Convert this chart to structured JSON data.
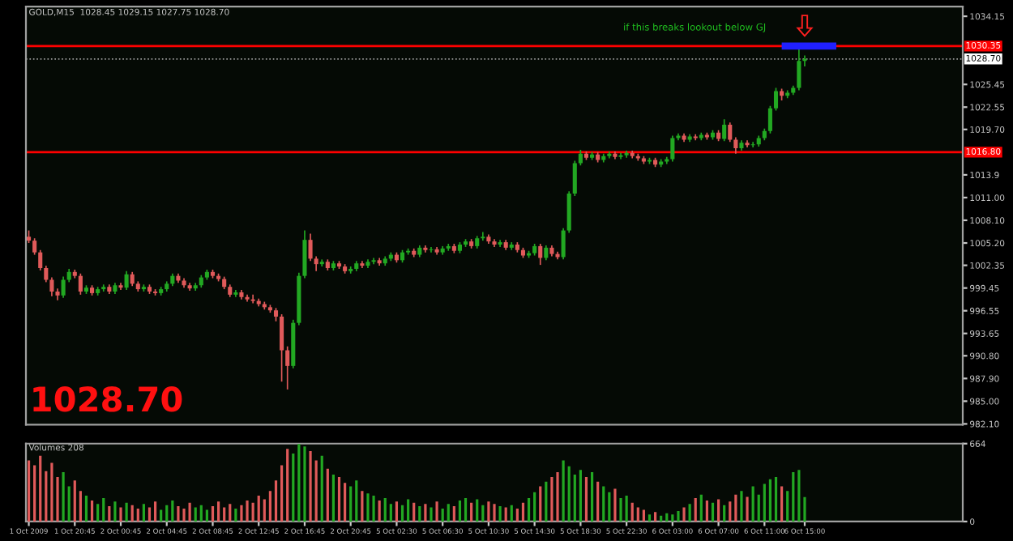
{
  "chart_data": [
    {
      "type": "candlestick",
      "title": "GOLD,M15  1028.45 1029.15 1027.75 1028.70",
      "categories": [
        null,
        null,
        null,
        null,
        null,
        null,
        null,
        null,
        null,
        null,
        null,
        null,
        null,
        null,
        null,
        null,
        null,
        null,
        null,
        null,
        null,
        null,
        null,
        null,
        null,
        null,
        null,
        null,
        null,
        null,
        null,
        null,
        null,
        null,
        null,
        null,
        null,
        null,
        null,
        null,
        null,
        null,
        null,
        null,
        null,
        null,
        null,
        null,
        null,
        null,
        null,
        null,
        null,
        null,
        null,
        null,
        null,
        null,
        null,
        null,
        null,
        null,
        null,
        null,
        null,
        null,
        null,
        null,
        null,
        null,
        null,
        null,
        null,
        null,
        null,
        null,
        null,
        null,
        null,
        null,
        null,
        null,
        null,
        null,
        null,
        null,
        null,
        null,
        null,
        null,
        null,
        null,
        null,
        null,
        null,
        null,
        null,
        null,
        null,
        null,
        null,
        null,
        null,
        null,
        null,
        null,
        null,
        null,
        null,
        null,
        null,
        null,
        null,
        null,
        null,
        null,
        null,
        null,
        null,
        null,
        null,
        null,
        null,
        null,
        null,
        null,
        null,
        null,
        null,
        null,
        null,
        null,
        null,
        null,
        null,
        null,
        null,
        null,
        null,
        null,
        null,
        null,
        null,
        null,
        null,
        null,
        null,
        null,
        null,
        null,
        null,
        null,
        null,
        null,
        null,
        null,
        null,
        null,
        null,
        null,
        null,
        null,
        null
      ],
      "ohlc": [
        [
          1006.0,
          1006.8,
          1005.2,
          1005.5
        ],
        [
          1005.5,
          1005.8,
          1003.7,
          1004.0
        ],
        [
          1004.0,
          1004.3,
          1001.7,
          1002.0
        ],
        [
          1002.0,
          1002.3,
          1000.2,
          1000.5
        ],
        [
          1000.5,
          1000.8,
          998.4,
          999.0
        ],
        [
          999.0,
          999.4,
          997.9,
          998.5
        ],
        [
          998.5,
          1000.9,
          998.2,
          1000.5
        ],
        [
          1000.5,
          1001.9,
          1000.2,
          1001.5
        ],
        [
          1001.5,
          1001.8,
          1000.7,
          1001.0
        ],
        [
          1001.0,
          1001.3,
          998.6,
          999.0
        ],
        [
          999.0,
          999.8,
          998.7,
          999.5
        ],
        [
          999.5,
          999.8,
          998.5,
          998.8
        ],
        [
          998.8,
          999.6,
          998.5,
          999.3
        ],
        [
          999.3,
          999.9,
          999.0,
          999.6
        ],
        [
          999.6,
          999.9,
          998.7,
          999.0
        ],
        [
          999.0,
          1000.1,
          998.7,
          999.8
        ],
        [
          999.8,
          1000.1,
          999.2,
          999.5
        ],
        [
          999.5,
          1001.6,
          999.2,
          1001.2
        ],
        [
          1001.2,
          1001.5,
          999.7,
          1000.0
        ],
        [
          1000.0,
          1000.3,
          999.0,
          999.3
        ],
        [
          999.3,
          999.9,
          999.0,
          999.6
        ],
        [
          999.6,
          999.9,
          998.7,
          999.0
        ],
        [
          999.0,
          999.3,
          998.5,
          998.8
        ],
        [
          998.8,
          999.6,
          998.5,
          999.3
        ],
        [
          999.3,
          1000.3,
          999.0,
          1000.0
        ],
        [
          1000.0,
          1001.3,
          999.7,
          1001.0
        ],
        [
          1001.0,
          1001.3,
          1000.1,
          1000.4
        ],
        [
          1000.4,
          1000.7,
          999.5,
          999.8
        ],
        [
          999.8,
          1000.1,
          999.1,
          999.4
        ],
        [
          999.4,
          1000.1,
          999.1,
          999.8
        ],
        [
          999.8,
          1001.1,
          999.5,
          1000.8
        ],
        [
          1000.8,
          1001.8,
          1000.5,
          1001.5
        ],
        [
          1001.5,
          1001.8,
          1000.7,
          1001.0
        ],
        [
          1001.0,
          1001.3,
          1000.3,
          1000.6
        ],
        [
          1000.6,
          1000.9,
          999.3,
          999.6
        ],
        [
          999.6,
          999.9,
          998.3,
          998.6
        ],
        [
          998.6,
          999.2,
          998.3,
          998.9
        ],
        [
          998.9,
          999.2,
          998.0,
          998.3
        ],
        [
          998.3,
          998.6,
          997.7,
          998.0
        ],
        [
          998.0,
          998.6,
          997.5,
          997.8
        ],
        [
          997.8,
          998.1,
          997.1,
          997.4
        ],
        [
          997.4,
          997.7,
          996.7,
          997.0
        ],
        [
          997.0,
          997.3,
          996.3,
          996.6
        ],
        [
          996.6,
          996.9,
          995.2,
          995.8
        ],
        [
          995.8,
          996.1,
          987.5,
          991.5
        ],
        [
          991.5,
          992.0,
          986.5,
          989.5
        ],
        [
          989.5,
          995.4,
          989.2,
          995.0
        ],
        [
          995.0,
          1001.4,
          994.7,
          1001.0
        ],
        [
          1001.0,
          1006.8,
          1000.7,
          1005.6
        ],
        [
          1005.6,
          1006.4,
          1002.9,
          1003.2
        ],
        [
          1003.2,
          1003.5,
          1001.6,
          1002.5
        ],
        [
          1002.5,
          1003.1,
          1002.2,
          1002.8
        ],
        [
          1002.8,
          1003.1,
          1001.7,
          1002.0
        ],
        [
          1002.0,
          1002.9,
          1001.7,
          1002.6
        ],
        [
          1002.6,
          1002.9,
          1001.9,
          1002.2
        ],
        [
          1002.2,
          1002.5,
          1001.3,
          1001.6
        ],
        [
          1001.6,
          1002.2,
          1001.3,
          1001.9
        ],
        [
          1001.9,
          1002.9,
          1001.6,
          1002.6
        ],
        [
          1002.6,
          1002.9,
          1002.0,
          1002.3
        ],
        [
          1002.3,
          1003.1,
          1002.0,
          1002.8
        ],
        [
          1002.8,
          1003.3,
          1002.5,
          1003.0
        ],
        [
          1003.0,
          1003.3,
          1002.3,
          1002.6
        ],
        [
          1002.6,
          1003.5,
          1002.3,
          1003.2
        ],
        [
          1003.2,
          1004.0,
          1002.9,
          1003.7
        ],
        [
          1003.7,
          1004.0,
          1002.7,
          1003.0
        ],
        [
          1003.0,
          1004.3,
          1002.7,
          1004.0
        ],
        [
          1004.0,
          1004.5,
          1003.7,
          1004.2
        ],
        [
          1004.2,
          1004.5,
          1003.4,
          1003.7
        ],
        [
          1003.7,
          1004.9,
          1003.4,
          1004.6
        ],
        [
          1004.6,
          1004.9,
          1004.0,
          1004.3
        ],
        [
          1004.3,
          1004.7,
          1004.0,
          1004.4
        ],
        [
          1004.4,
          1004.7,
          1003.7,
          1004.0
        ],
        [
          1004.0,
          1004.8,
          1003.7,
          1004.5
        ],
        [
          1004.5,
          1005.1,
          1004.2,
          1004.8
        ],
        [
          1004.8,
          1005.1,
          1003.9,
          1004.2
        ],
        [
          1004.2,
          1005.3,
          1003.9,
          1005.0
        ],
        [
          1005.0,
          1005.7,
          1004.7,
          1005.4
        ],
        [
          1005.4,
          1005.7,
          1004.5,
          1004.8
        ],
        [
          1004.8,
          1006.1,
          1004.5,
          1005.8
        ],
        [
          1005.8,
          1006.6,
          1005.5,
          1006.0
        ],
        [
          1006.0,
          1006.3,
          1005.1,
          1005.4
        ],
        [
          1005.4,
          1005.7,
          1004.7,
          1005.0
        ],
        [
          1005.0,
          1005.6,
          1004.7,
          1005.3
        ],
        [
          1005.3,
          1005.6,
          1004.3,
          1004.6
        ],
        [
          1004.6,
          1005.3,
          1004.3,
          1005.0
        ],
        [
          1005.0,
          1005.3,
          1004.0,
          1004.3
        ],
        [
          1004.3,
          1004.6,
          1003.3,
          1003.6
        ],
        [
          1003.6,
          1004.2,
          1003.3,
          1003.9
        ],
        [
          1003.9,
          1005.1,
          1003.6,
          1004.8
        ],
        [
          1004.8,
          1005.1,
          1002.4,
          1003.3
        ],
        [
          1003.3,
          1004.9,
          1003.0,
          1004.6
        ],
        [
          1004.6,
          1004.9,
          1003.5,
          1003.8
        ],
        [
          1003.8,
          1004.1,
          1003.1,
          1003.4
        ],
        [
          1003.4,
          1007.1,
          1003.1,
          1006.8
        ],
        [
          1006.8,
          1011.8,
          1006.5,
          1011.5
        ],
        [
          1011.5,
          1015.7,
          1011.2,
          1015.4
        ],
        [
          1015.4,
          1017.1,
          1015.1,
          1016.6
        ],
        [
          1016.6,
          1016.9,
          1015.8,
          1016.1
        ],
        [
          1016.1,
          1016.8,
          1015.8,
          1016.5
        ],
        [
          1016.5,
          1016.8,
          1015.5,
          1015.8
        ],
        [
          1015.8,
          1016.6,
          1015.5,
          1016.3
        ],
        [
          1016.3,
          1016.9,
          1016.0,
          1016.6
        ],
        [
          1016.6,
          1016.9,
          1015.9,
          1016.2
        ],
        [
          1016.2,
          1016.7,
          1015.9,
          1016.4
        ],
        [
          1016.4,
          1017.0,
          1016.1,
          1016.7
        ],
        [
          1016.7,
          1017.0,
          1016.0,
          1016.3
        ],
        [
          1016.3,
          1016.6,
          1015.7,
          1016.0
        ],
        [
          1016.0,
          1016.3,
          1015.3,
          1015.6
        ],
        [
          1015.6,
          1016.1,
          1015.3,
          1015.8
        ],
        [
          1015.8,
          1016.1,
          1014.9,
          1015.2
        ],
        [
          1015.2,
          1015.9,
          1014.9,
          1015.6
        ],
        [
          1015.6,
          1016.2,
          1015.3,
          1015.9
        ],
        [
          1015.9,
          1018.9,
          1015.6,
          1018.6
        ],
        [
          1018.6,
          1019.2,
          1018.3,
          1018.9
        ],
        [
          1018.9,
          1019.2,
          1018.1,
          1018.4
        ],
        [
          1018.4,
          1019.1,
          1018.1,
          1018.8
        ],
        [
          1018.8,
          1019.1,
          1018.3,
          1018.6
        ],
        [
          1018.6,
          1019.3,
          1018.3,
          1019.0
        ],
        [
          1019.0,
          1019.3,
          1018.4,
          1018.7
        ],
        [
          1018.7,
          1019.6,
          1018.4,
          1019.3
        ],
        [
          1019.3,
          1019.6,
          1018.2,
          1018.5
        ],
        [
          1018.5,
          1021.0,
          1018.2,
          1020.3
        ],
        [
          1020.3,
          1020.6,
          1018.1,
          1018.4
        ],
        [
          1018.4,
          1018.7,
          1016.6,
          1017.3
        ],
        [
          1017.3,
          1018.3,
          1017.0,
          1018.0
        ],
        [
          1018.0,
          1018.3,
          1017.4,
          1017.7
        ],
        [
          1017.7,
          1018.1,
          1017.4,
          1017.8
        ],
        [
          1017.8,
          1018.9,
          1017.5,
          1018.6
        ],
        [
          1018.6,
          1019.8,
          1018.3,
          1019.5
        ],
        [
          1019.5,
          1022.7,
          1019.2,
          1022.4
        ],
        [
          1022.4,
          1025.0,
          1022.1,
          1024.6
        ],
        [
          1024.6,
          1024.9,
          1023.4,
          1024.0
        ],
        [
          1024.0,
          1024.7,
          1023.7,
          1024.4
        ],
        [
          1024.4,
          1025.3,
          1024.1,
          1025.0
        ],
        [
          1025.0,
          1030.2,
          1024.7,
          1028.45
        ],
        [
          1028.45,
          1029.15,
          1027.75,
          1028.7
        ],
        null,
        null,
        null,
        null,
        null,
        null,
        null,
        null,
        null,
        null,
        null,
        null,
        null,
        null,
        null,
        null,
        null,
        null,
        null,
        null,
        null,
        null,
        null,
        null,
        null,
        null,
        null
      ],
      "colors": [
        "#e05a5a",
        "#e05a5a",
        "#e05a5a",
        "#e05a5a",
        "#e05a5a",
        "#e05a5a",
        "#22a822",
        "#22a822",
        "#e05a5a",
        "#e05a5a",
        "#22a822",
        "#e05a5a",
        "#22a822",
        "#22a822",
        "#e05a5a",
        "#22a822",
        "#e05a5a",
        "#22a822",
        "#e05a5a",
        "#e05a5a",
        "#22a822",
        "#e05a5a",
        "#e05a5a",
        "#22a822",
        "#22a822",
        "#22a822",
        "#e05a5a",
        "#e05a5a",
        "#e05a5a",
        "#22a822",
        "#22a822",
        "#22a822",
        "#e05a5a",
        "#e05a5a",
        "#e05a5a",
        "#e05a5a",
        "#22a822",
        "#e05a5a",
        "#e05a5a",
        "#e05a5a",
        "#e05a5a",
        "#e05a5a",
        "#e05a5a",
        "#e05a5a",
        "#e05a5a",
        "#e05a5a",
        "#22a822",
        "#22a822",
        "#22a822",
        "#e05a5a",
        "#e05a5a",
        "#22a822",
        "#e05a5a",
        "#22a822",
        "#e05a5a",
        "#e05a5a",
        "#22a822",
        "#22a822",
        "#e05a5a",
        "#22a822",
        "#22a822",
        "#e05a5a",
        "#22a822",
        "#22a822",
        "#e05a5a",
        "#22a822",
        "#22a822",
        "#e05a5a",
        "#22a822",
        "#e05a5a",
        "#22a822",
        "#e05a5a",
        "#22a822",
        "#22a822",
        "#e05a5a",
        "#22a822",
        "#22a822",
        "#e05a5a",
        "#22a822",
        "#22a822",
        "#e05a5a",
        "#e05a5a",
        "#22a822",
        "#e05a5a",
        "#22a822",
        "#e05a5a",
        "#e05a5a",
        "#22a822",
        "#22a822",
        "#e05a5a",
        "#22a822",
        "#e05a5a",
        "#e05a5a",
        "#22a822",
        "#22a822",
        "#22a822",
        "#22a822",
        "#e05a5a",
        "#22a822",
        "#e05a5a",
        "#22a822",
        "#22a822",
        "#e05a5a",
        "#22a822",
        "#22a822",
        "#e05a5a",
        "#e05a5a",
        "#e05a5a",
        "#22a822",
        "#e05a5a",
        "#22a822",
        "#22a822",
        "#22a822",
        "#22a822",
        "#e05a5a",
        "#22a822",
        "#e05a5a",
        "#22a822",
        "#e05a5a",
        "#22a822",
        "#e05a5a",
        "#22a822",
        "#e05a5a",
        "#e05a5a",
        "#22a822",
        "#e05a5a",
        "#22a822",
        "#22a822",
        "#22a822",
        "#22a822",
        "#22a822",
        "#e05a5a",
        "#22a822",
        "#22a822",
        "#22a822",
        "#22a822",
        null,
        null,
        null,
        null,
        null,
        null,
        null,
        null,
        null,
        null,
        null,
        null,
        null,
        null,
        null,
        null,
        null,
        null,
        null,
        null,
        null,
        null,
        null,
        null,
        null,
        null,
        null
      ],
      "ylim": [
        982.0,
        1035.4
      ],
      "yticks": [
        1034.15,
        1025.45,
        1022.55,
        {
          "value": 1019.7,
          "label": "1019.70"
        },
        1013.9,
        {
          "value": 1011.0,
          "label": "1011.00"
        },
        {
          "value": 1008.1,
          "label": "1008.10"
        },
        {
          "value": 1005.2,
          "label": "1005.20"
        },
        1002.35,
        999.45,
        996.55,
        993.65,
        {
          "value": 990.8,
          "label": "990.80"
        },
        {
          "value": 987.9,
          "label": "987.90"
        },
        {
          "value": 985.0,
          "label": "985.00"
        },
        {
          "value": 982.1,
          "label": "982.10"
        }
      ],
      "ref_lines": [
        {
          "axis": "y",
          "value": 1030.35,
          "label": "1030.35",
          "color": "#ff0000",
          "line_style": "solid"
        },
        {
          "axis": "y",
          "value": 1028.7,
          "label": "1028.70",
          "color": "#9a9a9a",
          "line_style": "dotted"
        },
        {
          "axis": "y",
          "value": 1016.8,
          "label": "1016.80",
          "color": "#ff0000",
          "line_style": "solid"
        }
      ],
      "annotations": [
        "if this breaks lookout below GJ",
        "1028.70"
      ],
      "tick_labels": "y"
    },
    {
      "type": "bar",
      "title": "Volumes 208",
      "categories": [
        "1 Oct 2009",
        null,
        null,
        null,
        null,
        null,
        null,
        null,
        "1 Oct 20:45",
        null,
        null,
        null,
        null,
        null,
        null,
        null,
        "2 Oct 00:45",
        null,
        null,
        null,
        null,
        null,
        null,
        null,
        "2 Oct 04:45",
        null,
        null,
        null,
        null,
        null,
        null,
        null,
        "2 Oct 08:45",
        null,
        null,
        null,
        null,
        null,
        null,
        null,
        "2 Oct 12:45",
        null,
        null,
        null,
        null,
        null,
        null,
        null,
        "2 Oct 16:45",
        null,
        null,
        null,
        null,
        null,
        null,
        null,
        "2 Oct 20:45",
        null,
        null,
        null,
        null,
        null,
        null,
        null,
        "5 Oct 02:30",
        null,
        null,
        null,
        null,
        null,
        null,
        null,
        "5 Oct 06:30",
        null,
        null,
        null,
        null,
        null,
        null,
        null,
        "5 Oct 10:30",
        null,
        null,
        null,
        null,
        null,
        null,
        null,
        "5 Oct 14:30",
        null,
        null,
        null,
        null,
        null,
        null,
        null,
        "5 Oct 18:30",
        null,
        null,
        null,
        null,
        null,
        null,
        null,
        "5 Oct 22:30",
        null,
        null,
        null,
        null,
        null,
        null,
        null,
        "6 Oct 03:00",
        null,
        null,
        null,
        null,
        null,
        null,
        null,
        "6 Oct 07:00",
        null,
        null,
        null,
        null,
        null,
        null,
        null,
        "6 Oct 11:00",
        null,
        null,
        null,
        null,
        null,
        null,
        "6 Oct 15:00",
        null,
        null,
        null,
        null,
        null,
        null,
        null,
        null,
        null,
        null,
        null,
        null,
        null,
        null,
        null,
        null,
        null,
        null,
        null,
        null,
        null,
        null,
        null,
        null,
        null,
        null,
        null
      ],
      "values": [
        520,
        480,
        560,
        430,
        500,
        380,
        420,
        300,
        350,
        260,
        220,
        180,
        150,
        200,
        130,
        170,
        120,
        160,
        140,
        110,
        150,
        120,
        170,
        100,
        140,
        180,
        130,
        110,
        160,
        120,
        140,
        100,
        130,
        170,
        120,
        150,
        110,
        140,
        180,
        160,
        220,
        190,
        260,
        350,
        480,
        620,
        580,
        660,
        640,
        600,
        520,
        560,
        450,
        400,
        380,
        330,
        300,
        350,
        260,
        240,
        220,
        180,
        200,
        150,
        170,
        140,
        190,
        160,
        130,
        150,
        120,
        170,
        110,
        150,
        130,
        180,
        200,
        160,
        190,
        140,
        170,
        150,
        130,
        120,
        140,
        110,
        160,
        200,
        250,
        300,
        340,
        380,
        420,
        520,
        470,
        400,
        440,
        380,
        420,
        340,
        300,
        250,
        280,
        200,
        220,
        160,
        120,
        100,
        60,
        80,
        50,
        70,
        60,
        90,
        120,
        150,
        200,
        230,
        180,
        160,
        190,
        140,
        170,
        230,
        260,
        210,
        300,
        230,
        320,
        360,
        380,
        300,
        260,
        420,
        440,
        208,
        null,
        null,
        null,
        null,
        null,
        null,
        null,
        null,
        null,
        null,
        null,
        null,
        null,
        null,
        null,
        null,
        null,
        null,
        null,
        null,
        null,
        null,
        null,
        null,
        null,
        null,
        null
      ],
      "colors": [
        "#e05a5a",
        "#e05a5a",
        "#e05a5a",
        "#e05a5a",
        "#e05a5a",
        "#e05a5a",
        "#22a822",
        "#22a822",
        "#e05a5a",
        "#e05a5a",
        "#22a822",
        "#e05a5a",
        "#22a822",
        "#22a822",
        "#e05a5a",
        "#22a822",
        "#e05a5a",
        "#22a822",
        "#e05a5a",
        "#e05a5a",
        "#22a822",
        "#e05a5a",
        "#e05a5a",
        "#22a822",
        "#22a822",
        "#22a822",
        "#e05a5a",
        "#e05a5a",
        "#e05a5a",
        "#22a822",
        "#22a822",
        "#22a822",
        "#e05a5a",
        "#e05a5a",
        "#e05a5a",
        "#e05a5a",
        "#22a822",
        "#e05a5a",
        "#e05a5a",
        "#e05a5a",
        "#e05a5a",
        "#e05a5a",
        "#e05a5a",
        "#e05a5a",
        "#e05a5a",
        "#e05a5a",
        "#22a822",
        "#22a822",
        "#22a822",
        "#e05a5a",
        "#e05a5a",
        "#22a822",
        "#e05a5a",
        "#22a822",
        "#e05a5a",
        "#e05a5a",
        "#22a822",
        "#22a822",
        "#e05a5a",
        "#22a822",
        "#22a822",
        "#e05a5a",
        "#22a822",
        "#22a822",
        "#e05a5a",
        "#22a822",
        "#22a822",
        "#e05a5a",
        "#22a822",
        "#e05a5a",
        "#22a822",
        "#e05a5a",
        "#22a822",
        "#22a822",
        "#e05a5a",
        "#22a822",
        "#22a822",
        "#e05a5a",
        "#22a822",
        "#22a822",
        "#e05a5a",
        "#e05a5a",
        "#22a822",
        "#e05a5a",
        "#22a822",
        "#e05a5a",
        "#e05a5a",
        "#22a822",
        "#22a822",
        "#e05a5a",
        "#22a822",
        "#e05a5a",
        "#e05a5a",
        "#22a822",
        "#22a822",
        "#22a822",
        "#22a822",
        "#e05a5a",
        "#22a822",
        "#e05a5a",
        "#22a822",
        "#22a822",
        "#e05a5a",
        "#22a822",
        "#22a822",
        "#e05a5a",
        "#e05a5a",
        "#e05a5a",
        "#22a822",
        "#e05a5a",
        "#22a822",
        "#22a822",
        "#22a822",
        "#22a822",
        "#e05a5a",
        "#22a822",
        "#e05a5a",
        "#22a822",
        "#e05a5a",
        "#22a822",
        "#e05a5a",
        "#22a822",
        "#e05a5a",
        "#e05a5a",
        "#22a822",
        "#e05a5a",
        "#22a822",
        "#22a822",
        "#22a822",
        "#22a822",
        "#22a822",
        "#e05a5a",
        "#22a822",
        "#22a822",
        "#22a822",
        "#22a822",
        null,
        null,
        null,
        null,
        null,
        null,
        null,
        null,
        null,
        null,
        null,
        null,
        null,
        null,
        null,
        null,
        null,
        null,
        null,
        null,
        null,
        null,
        null,
        null,
        null,
        null,
        null
      ],
      "ylim": [
        0,
        664
      ],
      "yticks": [
        0,
        664
      ]
    }
  ]
}
